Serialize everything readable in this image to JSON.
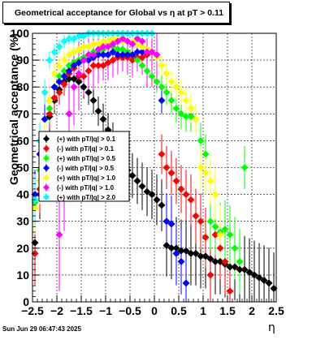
{
  "title": "Geometrical acceptance for Global vs    η  at pT > 0.11",
  "timestamp": "Sun Jun 29 06:47:43 2025",
  "colors": {
    "black": "#000000",
    "red": "#ff0000",
    "green": "#00ff00",
    "blue": "#0000ff",
    "yellow": "#ffff00",
    "magenta": "#ff00ff",
    "cyan": "#00ffff"
  },
  "chart_data": {
    "type": "scatter",
    "title": "Geometrical acceptance for Global vs    η  at pT > 0.11",
    "xlabel": "η",
    "ylabel": "Geometrical acceptance (%)",
    "xlim": [
      -2.5,
      2.5
    ],
    "ylim": [
      0,
      100
    ],
    "grid": true,
    "legend_position": "left-center",
    "x_ticks": [
      "−2.5",
      "−2",
      "−1.5",
      "−1",
      "−0.5",
      "0",
      "0.5",
      "1",
      "1.5",
      "2",
      "2.5"
    ],
    "y_ticks": [
      "0",
      "10",
      "20",
      "30",
      "40",
      "50",
      "60",
      "70",
      "80",
      "90",
      "100"
    ],
    "series": [
      {
        "name": "(+) with pT/|q| > 0.1",
        "color": "black",
        "x": [
          -2.45,
          -2.35,
          -2.25,
          -2.15,
          -2.05,
          -1.95,
          -1.85,
          -1.75,
          -1.65,
          -1.55,
          -1.45,
          -1.35,
          -1.25,
          -1.15,
          -1.05,
          -0.95,
          -0.85,
          -0.75,
          -0.65,
          -0.55,
          -0.45,
          -0.35,
          -0.25,
          -0.15,
          -0.05,
          0.05,
          0.15,
          0.25,
          0.35,
          0.45,
          0.55,
          0.65,
          0.75,
          0.85,
          0.95,
          1.05,
          1.15,
          1.25,
          1.35,
          1.45,
          1.55,
          1.65,
          1.75,
          1.85,
          1.95,
          2.05,
          2.15,
          2.25,
          2.35,
          2.45
        ],
        "y": [
          22,
          40,
          56,
          69,
          75,
          79,
          82,
          83,
          83,
          82,
          80,
          78,
          75,
          71,
          68,
          64,
          60,
          56,
          52,
          49,
          47,
          45,
          43,
          41,
          40,
          38,
          36,
          21,
          20,
          20,
          19,
          19,
          18,
          18,
          17,
          17,
          16,
          15,
          15,
          14,
          13,
          13,
          12,
          12,
          11,
          10,
          9,
          8,
          7,
          5
        ]
      },
      {
        "name": "(-) with pT/|q| > 0.1",
        "color": "red",
        "x": [
          -2.45,
          -2.35,
          -2.25,
          -2.15,
          -2.05,
          -1.95,
          -1.85,
          -1.75,
          -1.65,
          -1.55,
          -1.45,
          -1.35,
          -1.25,
          -1.15,
          -1.05,
          -0.95,
          -0.85,
          -0.75,
          -0.65,
          -0.55,
          -0.45,
          -0.35,
          -0.25,
          -0.15,
          0.15,
          0.25,
          0.35,
          0.45,
          0.55,
          0.65,
          0.75,
          0.85,
          0.95,
          1.05,
          1.15,
          1.25,
          1.35,
          1.45,
          1.55
        ],
        "y": [
          18,
          42,
          57,
          70,
          76,
          78,
          81,
          85,
          87,
          84,
          84,
          86,
          88,
          88,
          88,
          89,
          90,
          91,
          91,
          91,
          90,
          91,
          91,
          92,
          55,
          50,
          48,
          45,
          42,
          40,
          38,
          32,
          30,
          24,
          10,
          25,
          20,
          15,
          4
        ]
      },
      {
        "name": "(+) with pT/|q| > 0.5",
        "color": "green",
        "x": [
          -2.45,
          -2.35,
          -2.25,
          -2.15,
          -2.05,
          -1.95,
          -1.85,
          -1.75,
          -1.65,
          -1.55,
          -1.45,
          -1.35,
          -1.25,
          -1.15,
          -1.05,
          -0.95,
          -0.85,
          -0.75,
          -0.65,
          -0.55,
          -0.45,
          -0.35,
          -0.25,
          -0.15,
          -0.05,
          0.05,
          0.15,
          0.25,
          0.35,
          0.45,
          0.55,
          0.65,
          0.75,
          0.85,
          0.95,
          1.05,
          1.15,
          1.25,
          1.35,
          1.45,
          1.55,
          1.65,
          1.75,
          1.85
        ],
        "y": [
          37,
          49,
          62,
          72,
          80,
          84,
          86,
          88,
          89,
          90,
          91,
          92,
          93,
          93,
          94,
          95,
          95,
          94,
          94,
          93,
          92,
          90,
          88,
          86,
          84,
          82,
          80,
          78,
          75,
          72,
          70,
          69,
          69,
          68,
          60,
          55,
          30,
          28,
          26,
          27,
          25,
          20,
          15,
          50
        ]
      },
      {
        "name": "(-) with pT/|q| > 0.5",
        "color": "blue",
        "x": [
          -2.45,
          -2.35,
          -2.25,
          -2.15,
          -2.05,
          -1.95,
          -1.85,
          -1.75,
          -1.65,
          -1.55,
          -1.45,
          -1.35,
          -1.25,
          -1.15,
          -1.05,
          -0.95,
          -0.85,
          -0.75,
          -0.65,
          -0.55,
          -0.45,
          -0.35,
          -0.25,
          -0.15,
          0.15,
          0.25,
          0.35,
          0.45,
          0.55,
          0.65
        ],
        "y": [
          40,
          55,
          68,
          75,
          80,
          82,
          84,
          86,
          88,
          89,
          90,
          90,
          91,
          92,
          92,
          92,
          93,
          92,
          92,
          92,
          92,
          93,
          93,
          94,
          75,
          30,
          29,
          18,
          15,
          7
        ]
      },
      {
        "name": "(+) with pT/|q| > 1.0",
        "color": "yellow",
        "x": [
          -2.45,
          -2.35,
          -2.25,
          -2.15,
          -2.05,
          -1.95,
          -1.85,
          -1.75,
          -1.65,
          -1.55,
          -1.45,
          -1.35,
          -1.25,
          -1.15,
          -1.05,
          -0.95,
          -0.85,
          -0.75,
          -0.65,
          -0.55,
          -0.45,
          -0.35,
          -0.25,
          -0.15,
          -0.05,
          0.05,
          0.15,
          0.25,
          0.35,
          0.45,
          0.55,
          0.65,
          0.75,
          0.85,
          0.95,
          1.05,
          1.15,
          1.25,
          1.35
        ],
        "y": [
          35,
          45,
          60,
          75,
          85,
          88,
          90,
          92,
          93,
          94,
          95,
          95,
          96,
          96,
          97,
          97,
          98,
          98,
          97,
          97,
          97,
          96,
          95,
          94,
          93,
          91,
          88,
          85,
          82,
          80,
          78,
          75,
          72,
          68,
          50,
          48,
          45,
          40,
          25
        ]
      },
      {
        "name": "(-) with pT/|q| > 1.0",
        "color": "magenta",
        "x": [
          -1.95,
          -1.85,
          -1.75,
          -1.65,
          -1.55,
          -1.45,
          -1.35,
          -1.25,
          -1.15,
          -1.05,
          -0.95,
          -0.85,
          -0.75,
          -0.65,
          -0.55,
          -0.45,
          -0.35,
          -0.25,
          -0.15,
          -0.05,
          0.05
        ],
        "y": [
          25,
          45,
          70,
          80,
          85,
          90,
          92,
          92,
          94,
          95,
          95,
          96,
          97,
          98,
          97,
          96,
          98,
          97,
          93,
          93,
          92
        ]
      },
      {
        "name": "(+) with pT/|q| > 2.0",
        "color": "cyan",
        "x": [
          -2.45,
          -2.35,
          -2.25,
          -2.15,
          -2.05,
          -1.95,
          -1.85,
          -1.75,
          -1.65,
          -1.55,
          -1.45,
          -1.35,
          -1.25,
          -1.15,
          -1.05,
          -0.95,
          -0.85,
          -0.75,
          -0.65,
          -0.55,
          -0.45,
          -0.35,
          -0.25,
          -0.15,
          -0.05
        ],
        "y": [
          38,
          60,
          78,
          90,
          93,
          95,
          97,
          98,
          98,
          99,
          99,
          100,
          100,
          100,
          100,
          100,
          100,
          100,
          100,
          100,
          100,
          100,
          100,
          100,
          100
        ]
      }
    ]
  }
}
